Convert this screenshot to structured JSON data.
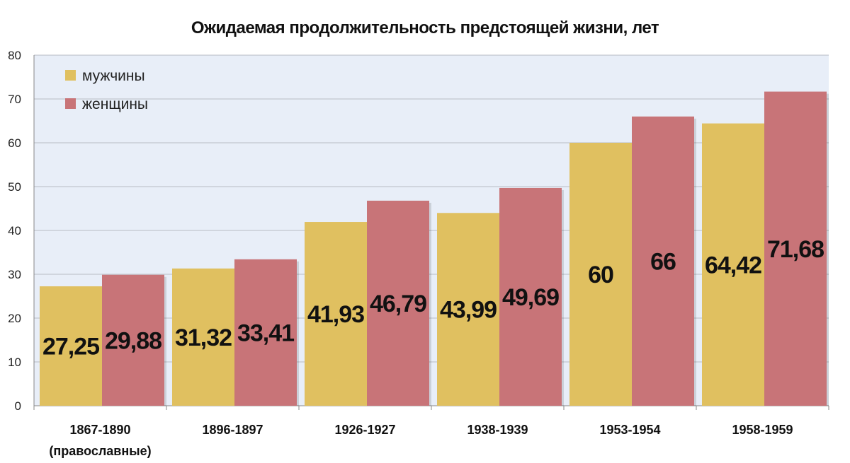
{
  "chart_data": {
    "type": "bar",
    "title": "Ожидаемая продолжительность предстоящей жизни, лет",
    "categories": [
      [
        "1867-1890",
        "(православные)"
      ],
      [
        "1896-1897"
      ],
      [
        "1926-1927"
      ],
      [
        "1938-1939"
      ],
      [
        "1953-1954"
      ],
      [
        "1958-1959"
      ]
    ],
    "series": [
      {
        "name": "мужчины",
        "color": "#e0c060",
        "values": [
          27.25,
          31.32,
          41.93,
          43.99,
          60,
          64.42
        ],
        "labels": [
          "27,25",
          "31,32",
          "41,93",
          "43,99",
          "60",
          "64,42"
        ]
      },
      {
        "name": "женщины",
        "color": "#c87478",
        "values": [
          29.88,
          33.41,
          46.79,
          49.69,
          66,
          71.68
        ],
        "labels": [
          "29,88",
          "33,41",
          "46,79",
          "49,69",
          "66",
          "71,68"
        ]
      }
    ],
    "ylim": [
      0,
      80
    ],
    "yticks": [
      0,
      10,
      20,
      30,
      40,
      50,
      60,
      70,
      80
    ],
    "grid": true,
    "legend_position": "top-left",
    "plot_background": "#e8eef8"
  }
}
